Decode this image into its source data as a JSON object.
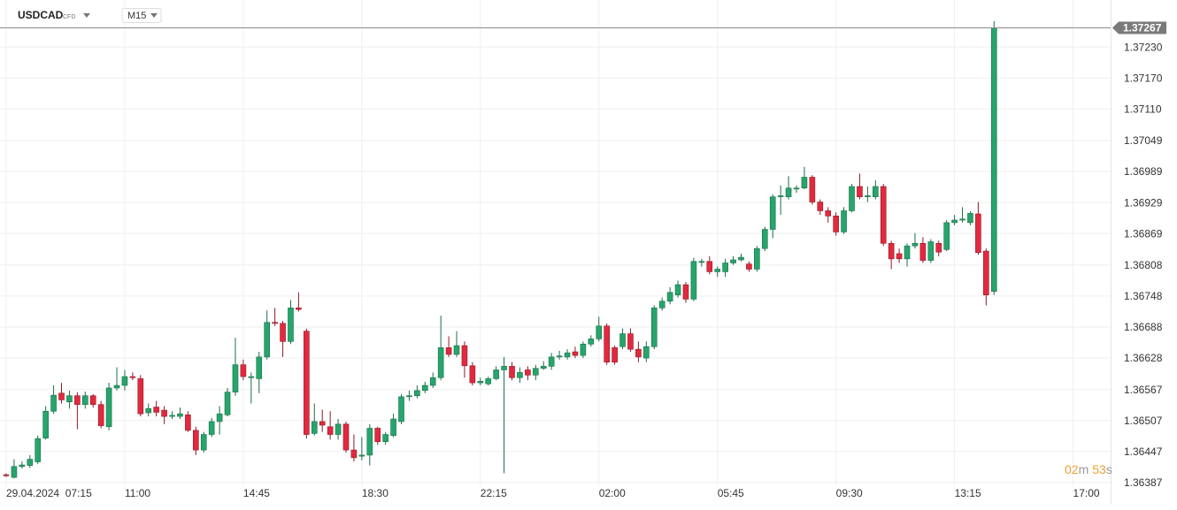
{
  "chart_data": {
    "type": "candlestick",
    "symbol": "USDCAD",
    "instrument_type": "CFD",
    "timeframe": "M15",
    "timer": {
      "minutes": "02",
      "minutes_unit": "m",
      "seconds": "53",
      "seconds_unit": "s"
    },
    "last_price": 1.37267,
    "up_color": "#26a56c",
    "down_color": "#e3293e",
    "grid": true,
    "ylim": [
      1.3638,
      1.37321
    ],
    "yticks": [
      1.36387,
      1.36447,
      1.36507,
      1.36567,
      1.36628,
      1.36688,
      1.36748,
      1.36808,
      1.36869,
      1.36929,
      1.36989,
      1.37049,
      {
        "value": 1.3711,
        "label": "1.37110"
      },
      {
        "value": 1.3717,
        "label": "1.37170"
      },
      {
        "value": 1.3723,
        "label": "1.37230"
      }
    ],
    "categories": [
      "29.04.2024  07:15",
      null,
      null,
      null,
      null,
      null,
      null,
      null,
      null,
      null,
      null,
      null,
      null,
      null,
      null,
      "11:00",
      null,
      null,
      null,
      null,
      null,
      null,
      null,
      null,
      null,
      null,
      null,
      null,
      null,
      null,
      "14:45",
      null,
      null,
      null,
      null,
      null,
      null,
      null,
      null,
      null,
      null,
      null,
      null,
      null,
      null,
      "18:30",
      null,
      null,
      null,
      null,
      null,
      null,
      null,
      null,
      null,
      null,
      null,
      null,
      null,
      null,
      "22:15",
      null,
      null,
      null,
      null,
      null,
      null,
      null,
      null,
      null,
      null,
      null,
      null,
      null,
      null,
      "02:00",
      null,
      null,
      null,
      null,
      null,
      null,
      null,
      null,
      null,
      null,
      null,
      null,
      null,
      null,
      "05:45",
      null,
      null,
      null,
      null,
      null,
      null,
      null,
      null,
      null,
      null,
      null,
      null,
      null,
      null,
      "09:30",
      null,
      null,
      null,
      null,
      null,
      null,
      null,
      null,
      null,
      null,
      null,
      null,
      null,
      null,
      "13:15",
      null,
      null,
      null,
      null,
      null,
      null,
      null,
      null,
      null,
      null,
      null,
      null,
      null,
      null,
      "17:00"
    ],
    "open": [
      1.36402,
      1.36397,
      1.36418,
      1.3642,
      1.36427,
      1.36473,
      1.36525,
      1.3656,
      1.36543,
      1.36555,
      1.36538,
      1.36555,
      1.36538,
      1.36495,
      1.3657,
      1.36575,
      1.36592,
      1.36588,
      1.36522,
      1.36533,
      1.36527,
      1.36515,
      1.36515,
      1.36518,
      1.36488,
      1.3645,
      1.3648,
      1.36505,
      1.36518,
      1.36562,
      1.36615,
      1.3659,
      1.36588,
      1.3663,
      1.36697,
      1.36695,
      1.3666,
      1.36725,
      1.3668,
      1.36482,
      1.36505,
      1.36495,
      1.3648,
      1.365,
      1.3645,
      1.36438,
      1.3644,
      1.36492,
      1.36466,
      1.36478,
      1.36505,
      1.36553,
      1.36555,
      1.36565,
      1.36575,
      1.3659,
      1.36648,
      1.36635,
      1.36652,
      1.36613,
      1.3658,
      1.36578,
      1.36588,
      1.36605,
      1.36612,
      1.3659,
      1.36605,
      1.36595,
      1.36608,
      1.36612,
      1.3663,
      1.3663,
      1.3664,
      1.36633,
      1.36655,
      1.36665,
      1.3669,
      1.36648,
      1.3665,
      1.36675,
      1.36645,
      1.36628,
      1.3665,
      1.36725,
      1.36738,
      1.3675,
      1.3677,
      1.36742,
      1.36813,
      1.36815,
      1.36795,
      1.36795,
      1.36812,
      1.36818,
      1.3681,
      1.368,
      1.3684,
      1.36877,
      1.3694,
      1.3694,
      1.36955,
      1.36957,
      1.36978,
      1.3693,
      1.36913,
      1.36903,
      1.36872,
      1.36913,
      1.3696,
      1.3694,
      1.3694,
      1.3696,
      1.3685,
      1.3683,
      1.3682,
      1.36845,
      1.3685,
      1.36817,
      1.3685,
      1.36838,
      1.3689,
      1.36895,
      1.3689,
      1.36907,
      1.36835,
      1.36757,
      null,
      null,
      null,
      null,
      null,
      null,
      null,
      null,
      null,
      null
    ],
    "high": [
      1.36405,
      1.36432,
      1.36428,
      1.3644,
      1.36478,
      1.36535,
      1.36575,
      1.3658,
      1.36565,
      1.36562,
      1.36563,
      1.36558,
      1.36545,
      1.3658,
      1.3661,
      1.36605,
      1.366,
      1.36595,
      1.3654,
      1.36545,
      1.36535,
      1.36525,
      1.36532,
      1.36525,
      1.36495,
      1.36485,
      1.36512,
      1.36535,
      1.3657,
      1.36667,
      1.36625,
      1.366,
      1.3664,
      1.3672,
      1.36725,
      1.367,
      1.3674,
      1.36755,
      1.36685,
      1.3654,
      1.36528,
      1.36525,
      1.3651,
      1.36505,
      1.3648,
      1.36475,
      1.365,
      1.36495,
      1.36485,
      1.3652,
      1.36558,
      1.36565,
      1.36575,
      1.36582,
      1.366,
      1.3671,
      1.3667,
      1.3668,
      1.3666,
      1.3662,
      1.3659,
      1.36592,
      1.36612,
      1.3663,
      1.3662,
      1.3661,
      1.36612,
      1.36615,
      1.36622,
      1.36638,
      1.36642,
      1.36645,
      1.3665,
      1.3666,
      1.36672,
      1.36708,
      1.36695,
      1.36652,
      1.36685,
      1.36685,
      1.3666,
      1.3666,
      1.3673,
      1.36745,
      1.36765,
      1.36778,
      1.36775,
      1.36822,
      1.3682,
      1.36825,
      1.36805,
      1.3682,
      1.36825,
      1.3683,
      1.36815,
      1.36845,
      1.36882,
      1.36945,
      1.36962,
      1.3698,
      1.36962,
      1.36998,
      1.36982,
      1.36935,
      1.3692,
      1.3691,
      1.3692,
      1.36965,
      1.36985,
      1.3696,
      1.36972,
      1.36965,
      1.36855,
      1.3684,
      1.3685,
      1.3687,
      1.36862,
      1.36858,
      1.36855,
      1.36895,
      1.36905,
      1.3692,
      1.36912,
      1.3693,
      1.3684,
      1.3728,
      null,
      null,
      null,
      null,
      null,
      null,
      null,
      null,
      null,
      null
    ],
    "low": [
      1.36398,
      1.36395,
      1.36414,
      1.36415,
      1.36423,
      1.3647,
      1.3652,
      1.3654,
      1.3653,
      1.3649,
      1.3653,
      1.36532,
      1.36492,
      1.36488,
      1.36565,
      1.36565,
      1.36585,
      1.36515,
      1.36515,
      1.36515,
      1.365,
      1.3651,
      1.3651,
      1.36485,
      1.3644,
      1.36445,
      1.36475,
      1.3648,
      1.36515,
      1.36555,
      1.36585,
      1.3654,
      1.3656,
      1.36625,
      1.3669,
      1.3663,
      1.36655,
      1.36718,
      1.36472,
      1.36478,
      1.36485,
      1.3647,
      1.3647,
      1.36445,
      1.36428,
      1.3643,
      1.3642,
      1.3646,
      1.3646,
      1.36475,
      1.365,
      1.36545,
      1.3655,
      1.3656,
      1.3657,
      1.36585,
      1.3663,
      1.3663,
      1.3659,
      1.36575,
      1.36575,
      1.36575,
      1.36585,
      1.36405,
      1.36585,
      1.3658,
      1.36585,
      1.36585,
      1.36605,
      1.36605,
      1.36625,
      1.36625,
      1.36628,
      1.36628,
      1.3665,
      1.3666,
      1.36615,
      1.36615,
      1.36645,
      1.3664,
      1.3662,
      1.3662,
      1.36645,
      1.3672,
      1.36732,
      1.36745,
      1.36735,
      1.36738,
      1.36805,
      1.3679,
      1.36785,
      1.36785,
      1.36808,
      1.36815,
      1.36795,
      1.36795,
      1.36835,
      1.3686,
      1.36905,
      1.36935,
      1.36948,
      1.36955,
      1.36925,
      1.36905,
      1.3689,
      1.36865,
      1.36868,
      1.3691,
      1.36935,
      1.3693,
      1.36935,
      1.36845,
      1.368,
      1.36812,
      1.36805,
      1.3684,
      1.36812,
      1.36812,
      1.36825,
      1.36835,
      1.36885,
      1.3689,
      1.36885,
      1.36828,
      1.3673,
      1.3675,
      null,
      null,
      null,
      null,
      null,
      null,
      null,
      null,
      null,
      null
    ],
    "close": [
      1.364,
      1.36418,
      1.36421,
      1.36432,
      1.36472,
      1.36525,
      1.36556,
      1.36547,
      1.36555,
      1.36538,
      1.36555,
      1.36538,
      1.36497,
      1.3657,
      1.36575,
      1.36592,
      1.3659,
      1.3652,
      1.3653,
      1.36523,
      1.36515,
      1.36517,
      1.3652,
      1.36488,
      1.3645,
      1.3648,
      1.36505,
      1.3652,
      1.36562,
      1.36615,
      1.36592,
      1.36592,
      1.3663,
      1.36697,
      1.36695,
      1.3666,
      1.36725,
      1.36722,
      1.3648,
      1.36505,
      1.36498,
      1.3648,
      1.365,
      1.3645,
      1.36435,
      1.3644,
      1.36492,
      1.36466,
      1.3648,
      1.3651,
      1.36553,
      1.36555,
      1.36565,
      1.36575,
      1.3659,
      1.36648,
      1.36635,
      1.36652,
      1.36613,
      1.3658,
      1.36583,
      1.36588,
      1.36605,
      1.36612,
      1.3659,
      1.366,
      1.36595,
      1.36608,
      1.36612,
      1.3663,
      1.36632,
      1.36638,
      1.36633,
      1.36655,
      1.36665,
      1.3669,
      1.3662,
      1.3662,
      1.36675,
      1.36645,
      1.3663,
      1.3665,
      1.36725,
      1.36738,
      1.36755,
      1.3677,
      1.36742,
      1.36815,
      1.36815,
      1.36795,
      1.368,
      1.36812,
      1.36818,
      1.36823,
      1.368,
      1.3684,
      1.36877,
      1.3694,
      1.36942,
      1.36957,
      1.36957,
      1.36978,
      1.3693,
      1.36913,
      1.36903,
      1.36872,
      1.36913,
      1.3696,
      1.3694,
      1.36942,
      1.3696,
      1.3685,
      1.3682,
      1.3682,
      1.36845,
      1.3685,
      1.36817,
      1.36853,
      1.36833,
      1.3689,
      1.36895,
      1.36897,
      1.36908,
      1.36832,
      1.3675,
      1.37267,
      null,
      null,
      null,
      null,
      null,
      null,
      null,
      null,
      null,
      null
    ]
  }
}
